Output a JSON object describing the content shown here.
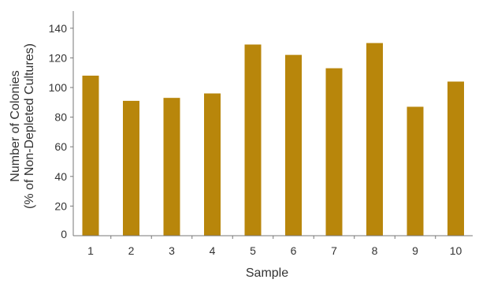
{
  "chart_data": {
    "type": "bar",
    "categories": [
      "1",
      "2",
      "3",
      "4",
      "5",
      "6",
      "7",
      "8",
      "9",
      "10"
    ],
    "values": [
      108,
      91,
      93,
      96,
      129,
      122,
      113,
      130,
      87,
      104
    ],
    "title": "",
    "xlabel": "Sample",
    "ylabel_line1": "Number of Colonies",
    "ylabel_line2": "(% of Non-Depleted Cultures)",
    "ylim": [
      0,
      150
    ],
    "yticks": [
      0,
      20,
      40,
      60,
      80,
      100,
      120,
      140
    ],
    "bar_color": "#b8860b",
    "axis_color": "#777777",
    "grid": false,
    "legend": "none"
  }
}
